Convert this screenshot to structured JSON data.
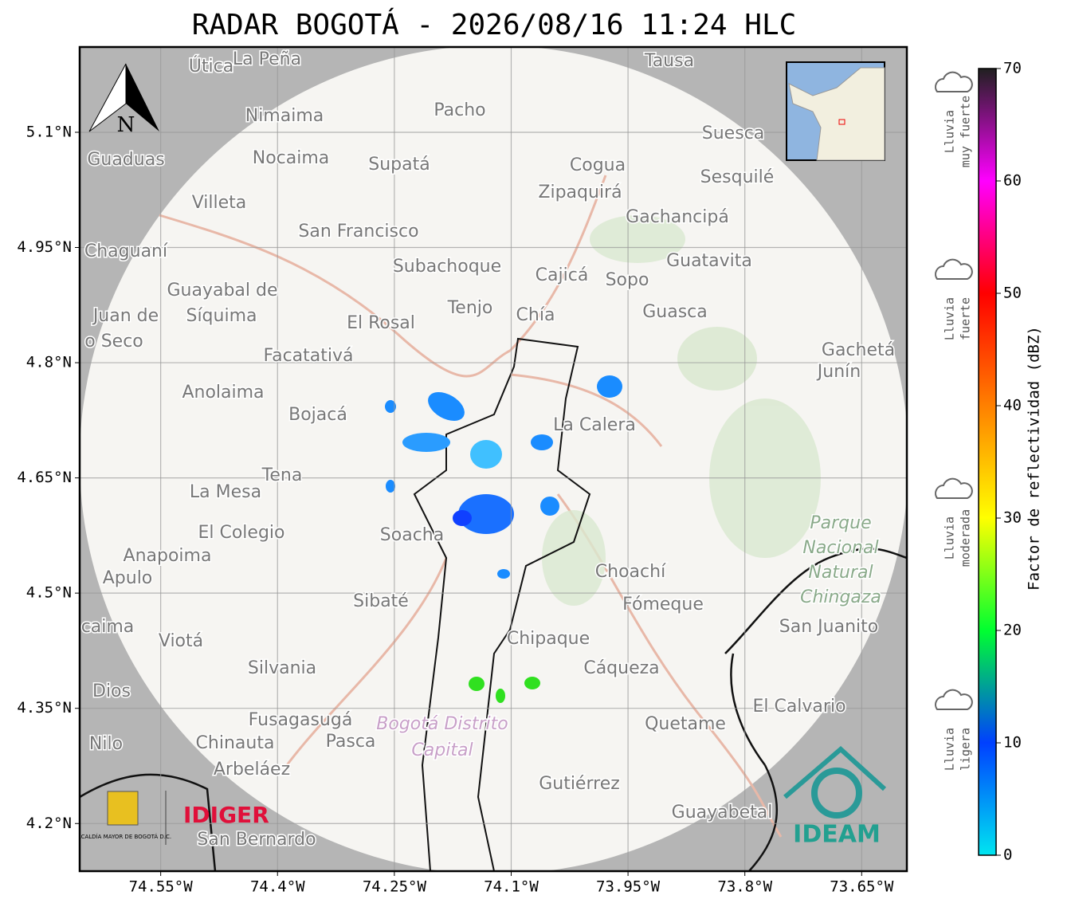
{
  "title": "RADAR BOGOTÁ - 2026/08/16 11:24 HLC",
  "map": {
    "xlim": [
      -74.654,
      -73.592
    ],
    "ylim": [
      4.138,
      5.211
    ],
    "xticks": [
      {
        "value": -74.55,
        "label": "74.55°W"
      },
      {
        "value": -74.4,
        "label": "74.4°W"
      },
      {
        "value": -74.25,
        "label": "74.25°W"
      },
      {
        "value": -74.1,
        "label": "74.1°W"
      },
      {
        "value": -73.95,
        "label": "73.95°W"
      },
      {
        "value": -73.8,
        "label": "73.8°W"
      },
      {
        "value": -73.65,
        "label": "73.65°W"
      }
    ],
    "yticks": [
      {
        "value": 4.2,
        "label": "4.2°N"
      },
      {
        "value": 4.35,
        "label": "4.35°N"
      },
      {
        "value": 4.5,
        "label": "4.5°N"
      },
      {
        "value": 4.65,
        "label": "4.65°N"
      },
      {
        "value": 4.8,
        "label": "4.8°N"
      },
      {
        "value": 4.95,
        "label": "4.95°N"
      },
      {
        "value": 5.1,
        "label": "5.1°N"
      }
    ],
    "grid": true,
    "places": [
      "Útica",
      "La Peña",
      "Tausa",
      "Pacho",
      "Nimaima",
      "Suesca",
      "Guaduas",
      "Nocaima",
      "Supatá",
      "Cogua",
      "Sesquilé",
      "Zipaquirá",
      "Villeta",
      "Gachancipá",
      "San Francisco",
      "Chaguaní",
      "Guatavita",
      "Subachoque",
      "Cajicá",
      "Sopo",
      "Guayabal de",
      "Síquima",
      "Juan de",
      "Tenjo",
      "Chía",
      "Guasca",
      "El Rosal",
      "o Seco",
      "Facatativá",
      "Gachetá",
      "Junín",
      "Anolaima",
      "Bojacá",
      "La Calera",
      "Tena",
      "La Mesa",
      "El Colegio",
      "Soacha",
      "Anapoima",
      "Apulo",
      "Choachí",
      "Sibaté",
      "Fómeque",
      "San Juanito",
      "caima",
      "Viotá",
      "Chipaque",
      "Silvania",
      "Cáqueza",
      "Dios",
      "El Calvario",
      "Fusagasugá",
      "Quetame",
      "Nilo",
      "Chinauta",
      "Pasca",
      "Arbeláez",
      "Gutiérrez",
      "Guayabetal",
      "San Bernardo"
    ],
    "park": [
      "Parque",
      "Nacional",
      "Natural",
      "Chingaza"
    ],
    "district": [
      "Bogotá Distrito",
      "Capital"
    ],
    "north": "N",
    "logos": {
      "alcaldia": "ALCALDÍA MAYOR DE BOGOTÁ D.C.",
      "idiger": "IDIGER",
      "ideam": "IDEAM"
    }
  },
  "colorbar": {
    "label": "Factor de reflectividad (dBZ)",
    "lim": [
      0,
      70
    ],
    "ticks": [
      0,
      10,
      20,
      30,
      40,
      50,
      60,
      70
    ],
    "colors": [
      "#00e5f0",
      "#0040ff",
      "#00ff30",
      "#ffff00",
      "#ff8000",
      "#ff0000",
      "#ff00ff",
      "#202020"
    ]
  },
  "legend": [
    [
      "Lluvia",
      "muy fuerte"
    ],
    [
      "Lluvia",
      "fuerte"
    ],
    [
      "Lluvia",
      "moderada"
    ],
    [
      "Lluvia",
      "ligera"
    ]
  ]
}
